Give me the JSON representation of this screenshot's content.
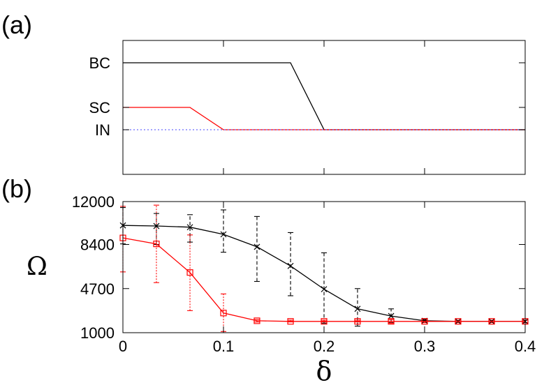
{
  "figure": {
    "panel_a_label": "(a)",
    "panel_b_label": "(b)"
  },
  "chart_data": [
    {
      "type": "line",
      "panel": "(a)",
      "title": "",
      "xlabel": "",
      "ylabel": "",
      "xlim": [
        0,
        0.4
      ],
      "ylim": [
        -1,
        2
      ],
      "y_tick_labels": [
        {
          "label": "BC",
          "y": 1.5
        },
        {
          "label": "SC",
          "y": 0.5
        },
        {
          "label": "IN",
          "y": 0
        }
      ],
      "x_ticks": [
        0.1,
        0.2,
        0.3
      ],
      "series": [
        {
          "color": "#000000",
          "style": "solid",
          "x": [
            0,
            0.1667,
            0.2,
            0.4
          ],
          "y": [
            1.5,
            1.5,
            0,
            0
          ]
        },
        {
          "color": "#ff0000",
          "style": "solid",
          "x": [
            0,
            0.0667,
            0.1,
            0.4
          ],
          "y": [
            0.5,
            0.5,
            0,
            0
          ]
        },
        {
          "color": "#6a6aff",
          "style": "dotted",
          "x": [
            0,
            0.4
          ],
          "y": [
            0,
            0
          ]
        }
      ],
      "grid": false,
      "legend": "none"
    },
    {
      "type": "line",
      "panel": "(b)",
      "title": "",
      "xlabel": "δ",
      "ylabel": "Ω",
      "xlim": [
        0,
        0.4
      ],
      "ylim": [
        1000,
        12000
      ],
      "x_tick_labels": [
        "0",
        "0.1",
        "0.2",
        "0.3",
        "0.4"
      ],
      "x_tick_values": [
        0,
        0.1,
        0.2,
        0.3,
        0.4
      ],
      "y_tick_labels": [
        "1000",
        "4700",
        "8400",
        "12000"
      ],
      "y_tick_values": [
        1000,
        4700,
        8400,
        12000
      ],
      "x": [
        0,
        0.0333,
        0.0667,
        0.1,
        0.1333,
        0.1667,
        0.2,
        0.2333,
        0.2667,
        0.3,
        0.3333,
        0.3667,
        0.4
      ],
      "series": [
        {
          "color": "#000000",
          "marker": "x",
          "errorbar_style": "dashed",
          "values": [
            10000,
            9950,
            9850,
            9250,
            8200,
            6600,
            4650,
            3000,
            2400,
            2000,
            1950,
            1950,
            1950
          ],
          "err_low": [
            8450,
            8400,
            8600,
            7750,
            5300,
            4100,
            1800,
            1550,
            1850,
            1850,
            1850,
            1850,
            1850
          ],
          "err_high": [
            11500,
            11000,
            10900,
            11300,
            10750,
            9400,
            7700,
            4700,
            3000,
            2150,
            2050,
            2050,
            2050
          ]
        },
        {
          "color": "#ff0000",
          "marker": "square",
          "errorbar_style": "dotted",
          "values": [
            8950,
            8450,
            6050,
            2650,
            2000,
            1950,
            1950,
            1950,
            1950,
            1950,
            1950,
            1950,
            1950
          ],
          "err_low": [
            6100,
            5200,
            2850,
            1100,
            1900,
            1900,
            1900,
            1900,
            1800,
            1850,
            1850,
            1850,
            1850
          ],
          "err_high": [
            11600,
            11700,
            9200,
            4250,
            2100,
            2050,
            2050,
            2050,
            2100,
            2050,
            2050,
            2050,
            2050
          ]
        }
      ],
      "grid": false,
      "legend": "none"
    }
  ]
}
